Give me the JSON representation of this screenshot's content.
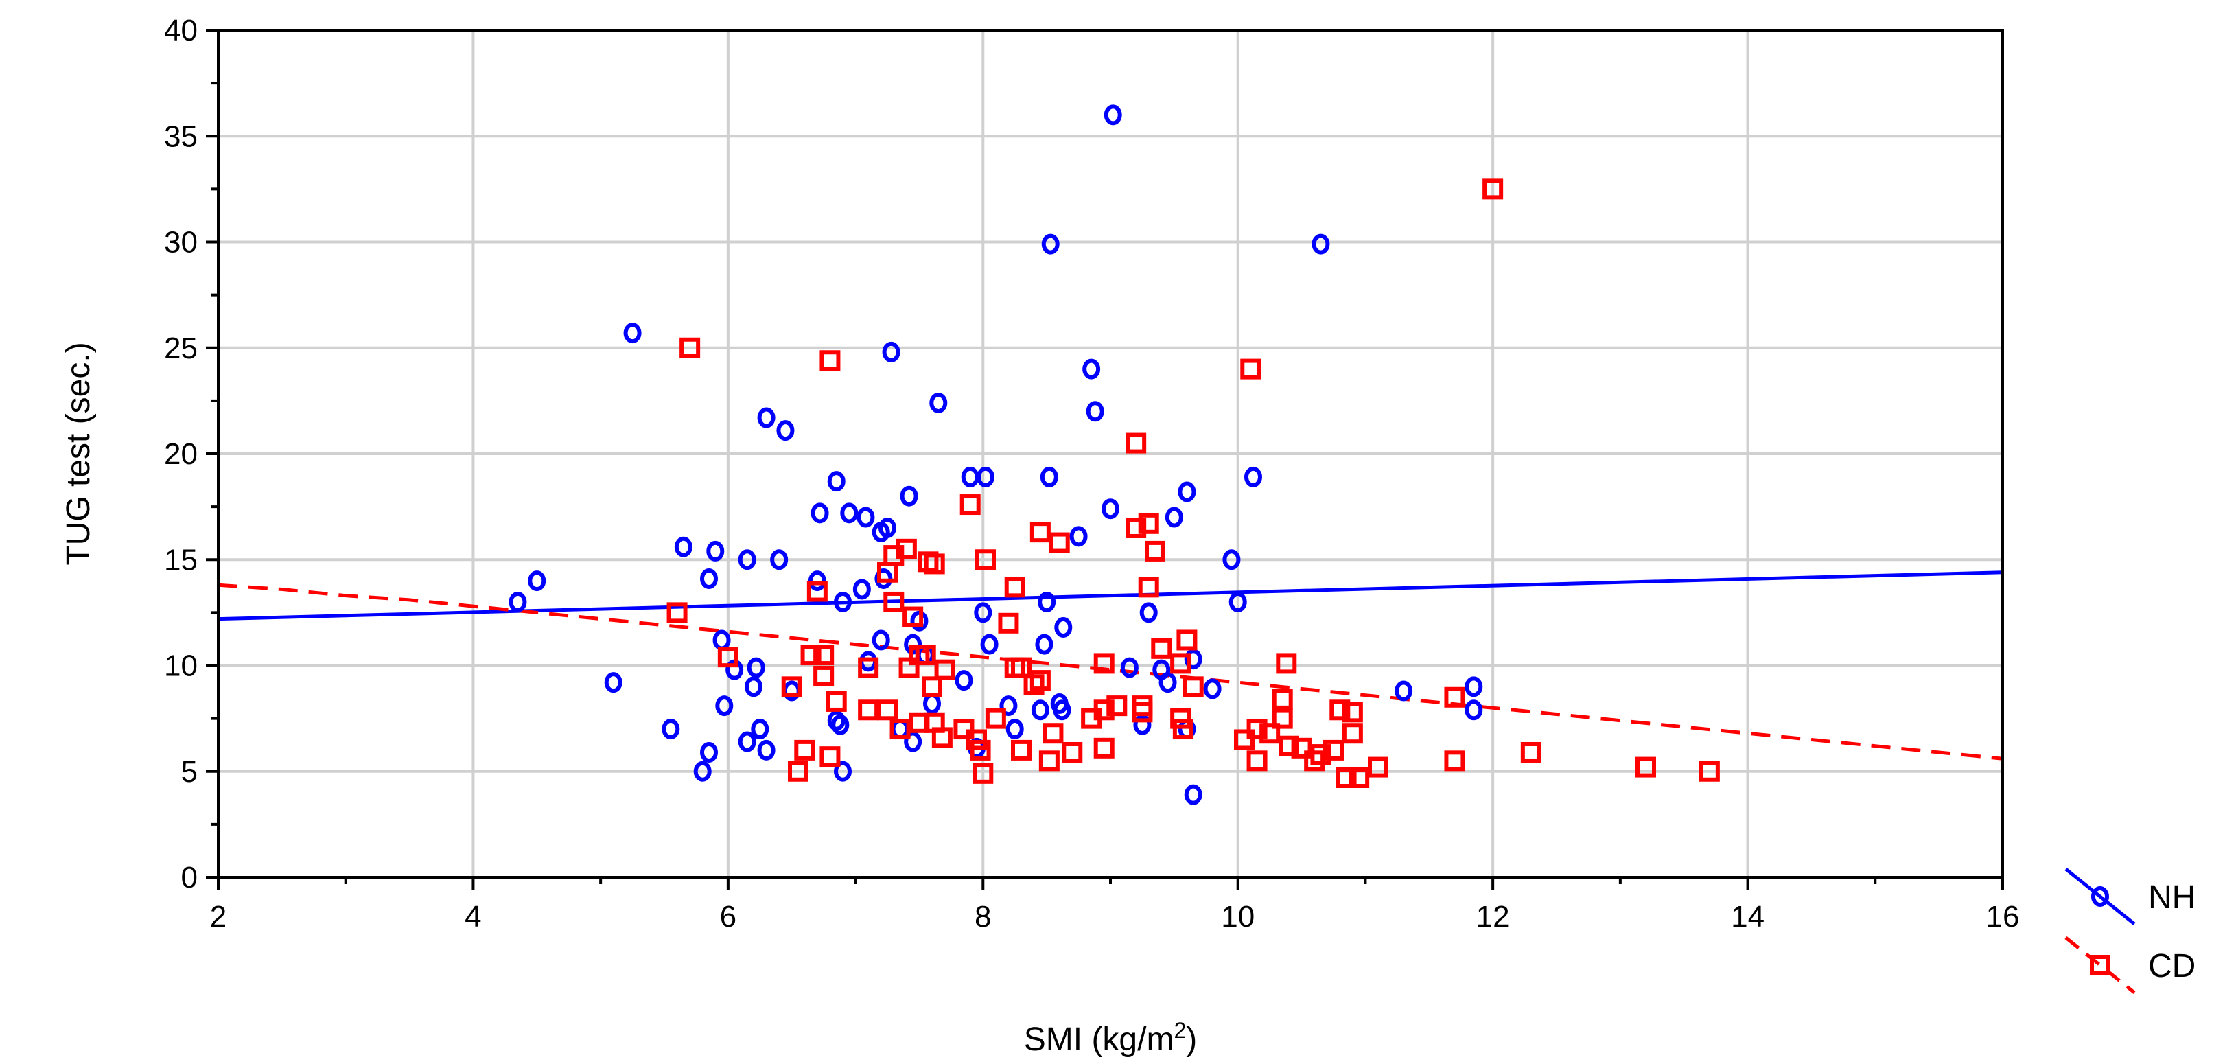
{
  "chart_data": {
    "type": "scatter",
    "title": "",
    "xlabel": "SMI (kg/m",
    "xlabel_sup": "2",
    "xlabel_suffix": ")",
    "ylabel": "TUG test (sec.)",
    "xlim": [
      2,
      16
    ],
    "ylim": [
      0,
      40
    ],
    "xticks": [
      2,
      4,
      6,
      8,
      10,
      12,
      14,
      16
    ],
    "yticks": [
      0,
      5,
      10,
      15,
      20,
      25,
      30,
      35,
      40
    ],
    "grid": true,
    "legend_position": "bottom-right outside",
    "colors": {
      "NH": "#0000ff",
      "CD": "#ff0000"
    },
    "series": [
      {
        "name": "NH",
        "marker": "circle",
        "line_style": "solid",
        "fit_line": {
          "x": [
            2,
            16
          ],
          "y": [
            12.2,
            14.4
          ]
        },
        "points": [
          [
            4.35,
            13.0
          ],
          [
            4.5,
            14.0
          ],
          [
            5.1,
            9.2
          ],
          [
            5.25,
            25.7
          ],
          [
            5.55,
            7.0
          ],
          [
            5.65,
            15.6
          ],
          [
            5.8,
            5.0
          ],
          [
            5.85,
            5.9
          ],
          [
            5.85,
            14.1
          ],
          [
            5.9,
            15.4
          ],
          [
            5.95,
            11.2
          ],
          [
            5.97,
            8.1
          ],
          [
            6.05,
            9.8
          ],
          [
            6.15,
            6.4
          ],
          [
            6.15,
            15.0
          ],
          [
            6.2,
            9.0
          ],
          [
            6.22,
            9.9
          ],
          [
            6.25,
            7.0
          ],
          [
            6.3,
            6.0
          ],
          [
            6.3,
            21.7
          ],
          [
            6.4,
            15.0
          ],
          [
            6.45,
            21.1
          ],
          [
            6.5,
            8.8
          ],
          [
            6.7,
            14.0
          ],
          [
            6.72,
            17.2
          ],
          [
            6.85,
            7.4
          ],
          [
            6.85,
            18.7
          ],
          [
            6.88,
            7.2
          ],
          [
            6.9,
            5.0
          ],
          [
            6.9,
            13.0
          ],
          [
            6.95,
            17.2
          ],
          [
            7.05,
            13.6
          ],
          [
            7.08,
            17.0
          ],
          [
            7.1,
            10.2
          ],
          [
            7.2,
            11.2
          ],
          [
            7.2,
            16.3
          ],
          [
            7.22,
            14.1
          ],
          [
            7.25,
            16.5
          ],
          [
            7.28,
            24.8
          ],
          [
            7.35,
            7.0
          ],
          [
            7.42,
            18.0
          ],
          [
            7.45,
            6.4
          ],
          [
            7.45,
            11.0
          ],
          [
            7.5,
            12.1
          ],
          [
            7.55,
            10.5
          ],
          [
            7.6,
            8.2
          ],
          [
            7.65,
            22.4
          ],
          [
            7.85,
            9.3
          ],
          [
            7.9,
            18.9
          ],
          [
            7.95,
            6.1
          ],
          [
            8.0,
            12.5
          ],
          [
            8.02,
            18.9
          ],
          [
            8.05,
            11.0
          ],
          [
            8.2,
            8.1
          ],
          [
            8.25,
            7.0
          ],
          [
            8.45,
            7.9
          ],
          [
            8.48,
            11.0
          ],
          [
            8.5,
            13.0
          ],
          [
            8.52,
            18.9
          ],
          [
            8.53,
            29.9
          ],
          [
            8.6,
            8.2
          ],
          [
            8.62,
            7.9
          ],
          [
            8.63,
            11.8
          ],
          [
            8.75,
            16.1
          ],
          [
            8.85,
            24.0
          ],
          [
            8.88,
            22.0
          ],
          [
            9.0,
            17.4
          ],
          [
            9.02,
            36.0
          ],
          [
            9.15,
            9.9
          ],
          [
            9.25,
            7.2
          ],
          [
            9.3,
            12.5
          ],
          [
            9.4,
            9.8
          ],
          [
            9.45,
            9.2
          ],
          [
            9.5,
            17.0
          ],
          [
            9.6,
            7.0
          ],
          [
            9.6,
            18.2
          ],
          [
            9.65,
            3.9
          ],
          [
            9.65,
            10.3
          ],
          [
            9.8,
            8.9
          ],
          [
            9.95,
            15.0
          ],
          [
            10.0,
            13.0
          ],
          [
            10.12,
            18.9
          ],
          [
            10.65,
            29.9
          ],
          [
            11.3,
            8.8
          ],
          [
            11.85,
            9.0
          ],
          [
            11.85,
            7.9
          ]
        ]
      },
      {
        "name": "CD",
        "marker": "square",
        "line_style": "dashed",
        "fit_line": {
          "x": [
            2,
            2.5,
            3,
            3.5,
            4,
            4.5,
            5,
            5.5,
            6,
            6.5,
            7,
            7.5,
            8,
            8.5,
            9,
            9.5,
            10,
            10.5,
            11,
            11.5,
            12,
            12.5,
            13,
            13.5,
            14,
            14.5,
            15,
            15.5,
            16
          ],
          "y": [
            13.8,
            13.6,
            13.3,
            13.1,
            12.8,
            12.5,
            12.2,
            11.9,
            11.6,
            11.3,
            11.0,
            10.7,
            10.4,
            10.1,
            9.8,
            9.5,
            9.2,
            8.9,
            8.6,
            8.3,
            8.0,
            7.7,
            7.4,
            7.1,
            6.8,
            6.5,
            6.2,
            5.9,
            5.6
          ]
        },
        "points": [
          [
            5.6,
            12.5
          ],
          [
            5.7,
            25.0
          ],
          [
            6.0,
            10.4
          ],
          [
            6.5,
            9.0
          ],
          [
            6.55,
            5.0
          ],
          [
            6.6,
            6.0
          ],
          [
            6.65,
            10.5
          ],
          [
            6.7,
            13.5
          ],
          [
            6.75,
            9.5
          ],
          [
            6.75,
            10.5
          ],
          [
            6.8,
            5.7
          ],
          [
            6.8,
            24.4
          ],
          [
            6.85,
            8.3
          ],
          [
            7.1,
            9.9
          ],
          [
            7.1,
            7.9
          ],
          [
            7.25,
            7.9
          ],
          [
            7.25,
            14.4
          ],
          [
            7.3,
            15.2
          ],
          [
            7.3,
            13.0
          ],
          [
            7.35,
            7.0
          ],
          [
            7.4,
            15.5
          ],
          [
            7.42,
            9.9
          ],
          [
            7.45,
            12.3
          ],
          [
            7.5,
            10.5
          ],
          [
            7.5,
            7.3
          ],
          [
            7.55,
            10.5
          ],
          [
            7.57,
            14.9
          ],
          [
            7.6,
            9.0
          ],
          [
            7.62,
            7.3
          ],
          [
            7.62,
            14.8
          ],
          [
            7.68,
            6.6
          ],
          [
            7.7,
            9.8
          ],
          [
            7.85,
            7.0
          ],
          [
            7.9,
            17.6
          ],
          [
            7.95,
            6.5
          ],
          [
            7.98,
            6.0
          ],
          [
            8.0,
            4.9
          ],
          [
            8.02,
            15.0
          ],
          [
            8.1,
            7.5
          ],
          [
            8.2,
            12.0
          ],
          [
            8.25,
            9.9
          ],
          [
            8.25,
            13.7
          ],
          [
            8.3,
            6.0
          ],
          [
            8.3,
            9.9
          ],
          [
            8.4,
            9.1
          ],
          [
            8.45,
            9.3
          ],
          [
            8.45,
            16.3
          ],
          [
            8.52,
            5.5
          ],
          [
            8.55,
            6.8
          ],
          [
            8.6,
            15.8
          ],
          [
            8.7,
            5.9
          ],
          [
            8.85,
            7.5
          ],
          [
            8.95,
            10.1
          ],
          [
            8.95,
            7.9
          ],
          [
            8.95,
            6.1
          ],
          [
            9.05,
            8.1
          ],
          [
            9.2,
            20.5
          ],
          [
            9.2,
            16.5
          ],
          [
            9.25,
            8.1
          ],
          [
            9.25,
            7.8
          ],
          [
            9.3,
            16.7
          ],
          [
            9.3,
            13.7
          ],
          [
            9.35,
            15.4
          ],
          [
            9.4,
            10.8
          ],
          [
            9.55,
            10.1
          ],
          [
            9.55,
            7.5
          ],
          [
            9.57,
            7.0
          ],
          [
            9.6,
            11.2
          ],
          [
            9.65,
            9.0
          ],
          [
            10.05,
            6.5
          ],
          [
            10.1,
            24.0
          ],
          [
            10.15,
            7.0
          ],
          [
            10.15,
            5.5
          ],
          [
            10.25,
            6.8
          ],
          [
            10.35,
            8.4
          ],
          [
            10.35,
            7.5
          ],
          [
            10.38,
            10.1
          ],
          [
            10.4,
            6.2
          ],
          [
            10.5,
            6.1
          ],
          [
            10.6,
            5.5
          ],
          [
            10.65,
            5.8
          ],
          [
            10.75,
            6.0
          ],
          [
            10.8,
            7.9
          ],
          [
            10.85,
            4.7
          ],
          [
            10.9,
            6.8
          ],
          [
            10.9,
            7.8
          ],
          [
            10.95,
            4.7
          ],
          [
            11.1,
            5.2
          ],
          [
            11.7,
            8.5
          ],
          [
            11.7,
            5.5
          ],
          [
            12.0,
            32.5
          ],
          [
            12.3,
            5.9
          ],
          [
            13.2,
            5.2
          ],
          [
            13.7,
            5.0
          ]
        ]
      }
    ]
  }
}
